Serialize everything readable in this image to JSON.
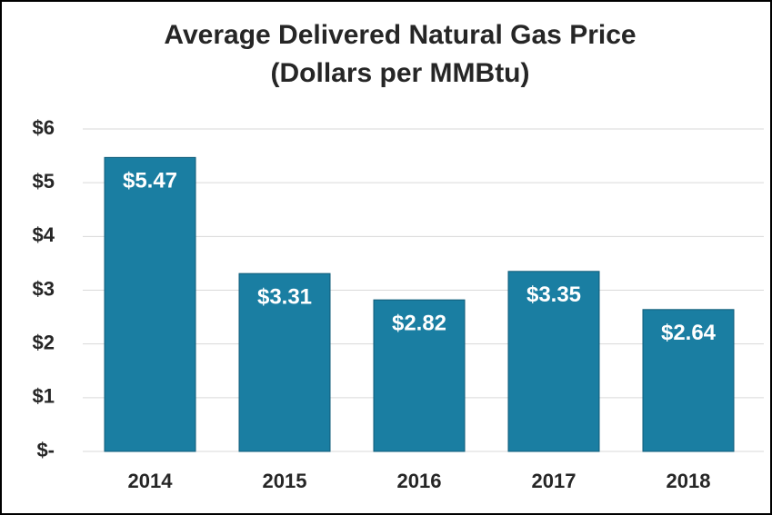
{
  "chart_data": {
    "type": "bar",
    "title": "Average Delivered Natural Gas Price",
    "subtitle": "(Dollars per MMBtu)",
    "categories": [
      "2014",
      "2015",
      "2016",
      "2017",
      "2018"
    ],
    "values": [
      5.47,
      3.31,
      2.82,
      3.35,
      2.64
    ],
    "value_labels": [
      "$5.47",
      "$3.31",
      "$2.82",
      "$3.35",
      "$2.64"
    ],
    "color": "#1a7ea2",
    "ylim": [
      0,
      6
    ],
    "yticks": [
      {
        "value": 0,
        "label": "$-"
      },
      {
        "value": 1,
        "label": "$1"
      },
      {
        "value": 2,
        "label": "$2"
      },
      {
        "value": 3,
        "label": "$3"
      },
      {
        "value": 4,
        "label": "$4"
      },
      {
        "value": 5,
        "label": "$5"
      },
      {
        "value": 6,
        "label": "$6"
      }
    ],
    "grid": true
  }
}
